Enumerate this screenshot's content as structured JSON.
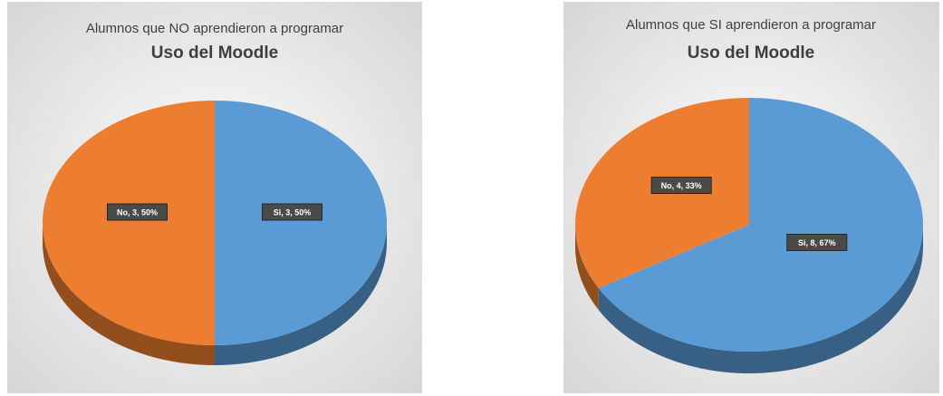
{
  "chart_data": [
    {
      "type": "pie",
      "title": "Alumnos que NO aprendieron a programar",
      "subtitle": "Uso del Moodle",
      "categories": [
        "Si",
        "No"
      ],
      "values": [
        3,
        3
      ],
      "percent_labels": [
        "50%",
        "50%"
      ],
      "labels": [
        "Si, 3, 50%",
        "No, 3, 50%"
      ],
      "colors": [
        "#5B9BD5",
        "#ED7D31"
      ],
      "legend": "none"
    },
    {
      "type": "pie",
      "title": "Alumnos que SI aprendieron a programar",
      "subtitle": "Uso del Moodle",
      "categories": [
        "Si",
        "No"
      ],
      "values": [
        8,
        4
      ],
      "percent_labels": [
        "67%",
        "33%"
      ],
      "labels": [
        "Si, 8, 67%",
        "No, 4, 33%"
      ],
      "colors": [
        "#5B9BD5",
        "#ED7D31"
      ],
      "legend": "none"
    }
  ]
}
